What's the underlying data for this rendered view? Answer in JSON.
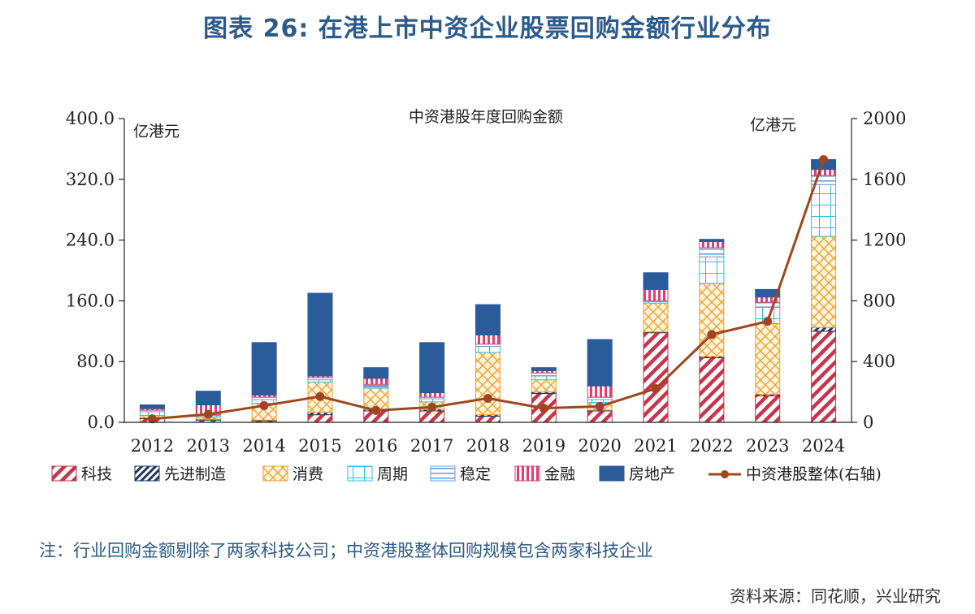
{
  "page": {
    "title": "图表 26: 在港上市中资企业股票回购金额行业分布",
    "note": "注：行业回购金额剔除了两家科技公司；中资港股整体回购规模包含两家科技企业",
    "source": "资料来源：同花顺，兴业研究"
  },
  "chart_data": {
    "type": "bar",
    "stacked": true,
    "title": "中资港股年度回购金额",
    "left_unit": "亿港元",
    "right_unit": "亿港元",
    "ylim_left": [
      0,
      400
    ],
    "ylim_right": [
      0,
      2000
    ],
    "left_ticks": [
      "0.0",
      "80.0",
      "160.0",
      "240.0",
      "320.0",
      "400.0"
    ],
    "right_ticks": [
      "0",
      "400",
      "800",
      "1200",
      "1600",
      "2000"
    ],
    "grid": false,
    "legend_position": "bottom",
    "categories": [
      "2012",
      "2013",
      "2014",
      "2015",
      "2016",
      "2017",
      "2018",
      "2019",
      "2020",
      "2021",
      "2022",
      "2023",
      "2024"
    ],
    "series": [
      {
        "name": "科技",
        "pattern": "diagonal",
        "color": "#c8344a",
        "values": [
          5,
          3,
          2,
          10,
          15,
          15,
          8,
          38,
          15,
          118,
          85,
          35,
          120
        ]
      },
      {
        "name": "先进制造",
        "pattern": "diagonal-dark",
        "color": "#1f3864",
        "values": [
          1,
          1,
          1,
          3,
          2,
          2,
          2,
          2,
          1,
          1,
          2,
          2,
          5
        ]
      },
      {
        "name": "消费",
        "pattern": "crosshatch",
        "color": "#f0a030",
        "values": [
          3,
          3,
          22,
          40,
          28,
          10,
          82,
          16,
          10,
          38,
          96,
          93,
          120
        ]
      },
      {
        "name": "周期",
        "pattern": "grid",
        "color": "#30c0d8",
        "values": [
          5,
          2,
          5,
          3,
          2,
          4,
          8,
          5,
          4,
          2,
          35,
          22,
          68
        ]
      },
      {
        "name": "稳定",
        "pattern": "hlines",
        "color": "#6aa0d8",
        "values": [
          2,
          1,
          3,
          3,
          3,
          2,
          3,
          4,
          3,
          1,
          12,
          6,
          12
        ]
      },
      {
        "name": "金融",
        "pattern": "vlines",
        "color": "#e04070",
        "values": [
          2,
          13,
          3,
          2,
          8,
          6,
          12,
          3,
          15,
          15,
          8,
          7,
          8
        ]
      },
      {
        "name": "房地产",
        "pattern": "solid",
        "color": "#2a5b9a",
        "values": [
          5,
          18,
          69,
          109,
          14,
          66,
          40,
          4,
          61,
          22,
          3,
          10,
          13
        ]
      }
    ],
    "line_series": {
      "name": "中资港股整体(右轴)",
      "axis": "right",
      "color": "#a0461e",
      "values": [
        23,
        53,
        110,
        170,
        78,
        100,
        158,
        93,
        105,
        222,
        578,
        665,
        1730
      ]
    }
  }
}
